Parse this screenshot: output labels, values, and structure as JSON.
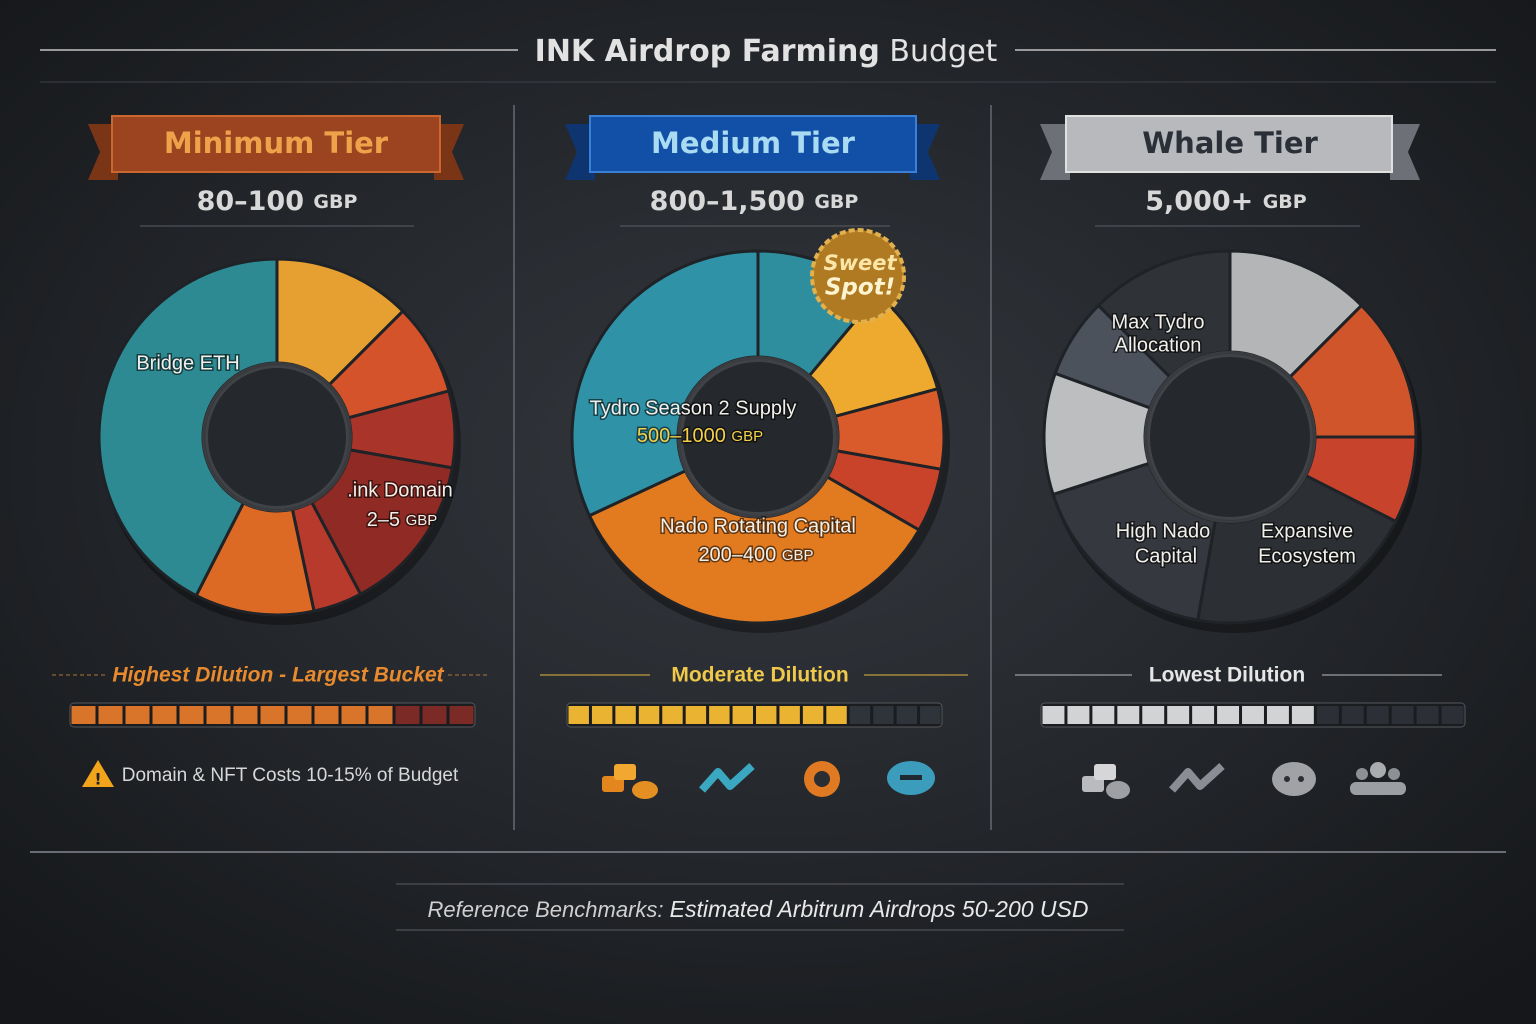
{
  "title": {
    "main": "INK Airdrop Farming",
    "light": "Budget"
  },
  "tiers": [
    {
      "name": "Minimum Tier",
      "amount": "80–100",
      "unit": "GBP",
      "labels": [
        {
          "lines": [
            "Bridge ETH"
          ]
        },
        {
          "lines": [
            ".ink Domain"
          ],
          "amount": "2–5",
          "unit": "GBP"
        }
      ],
      "dilution": "Highest Dilution - Largest Bucket",
      "note": "Domain & NFT Costs 10-15% of Budget"
    },
    {
      "name": "Medium Tier",
      "amount": "800–1,500",
      "unit": "GBP",
      "badge": [
        "Sweet",
        "Spot!"
      ],
      "labels": [
        {
          "lines": [
            "Tydro Season 2 Supply"
          ],
          "amount": "500–1000",
          "unit": "GBP"
        },
        {
          "lines": [
            "Nado Rotating Capital"
          ],
          "amount": "200–400",
          "unit": "GBP"
        }
      ],
      "dilution": "Moderate Dilution"
    },
    {
      "name": "Whale Tier",
      "amount": "5,000+",
      "unit": "GBP",
      "labels": [
        {
          "lines": [
            "Max Tydro",
            "Allocation"
          ]
        },
        {
          "lines": [
            "High Nado",
            "Capital"
          ]
        },
        {
          "lines": [
            "Expansive",
            "Ecosystem"
          ]
        }
      ],
      "dilution": "Lowest Dilution"
    }
  ],
  "footer": {
    "prefix": "Reference Benchmarks:",
    "text": "Estimated Arbitrum Airdrops 50-200 USD"
  }
}
